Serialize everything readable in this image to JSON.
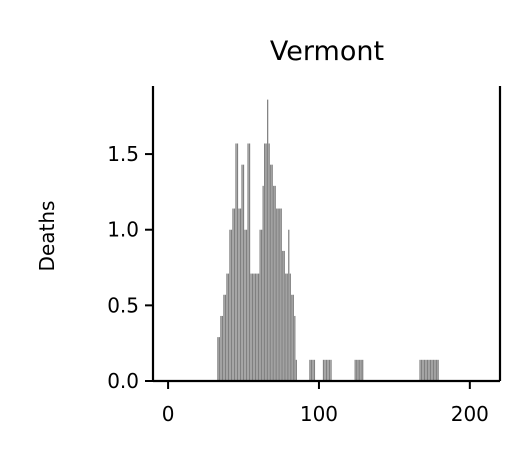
{
  "chart_data": {
    "type": "bar",
    "title": "Vermont",
    "xlabel": "",
    "ylabel": "Deaths",
    "xlim": [
      -10,
      220
    ],
    "ylim": [
      0,
      1.95
    ],
    "x_ticks": [
      0,
      100,
      200
    ],
    "y_ticks": [
      0.0,
      0.5,
      1.0,
      1.5
    ],
    "x_tick_labels": [
      "0",
      "100",
      "200"
    ],
    "y_tick_labels": [
      "0.0",
      "0.5",
      "1.0",
      "1.5"
    ],
    "bar_color": "#808080",
    "grid": false,
    "x": [
      33,
      34,
      35,
      36,
      37,
      38,
      39,
      40,
      41,
      42,
      43,
      44,
      45,
      46,
      47,
      48,
      49,
      50,
      51,
      52,
      53,
      54,
      55,
      56,
      57,
      58,
      59,
      60,
      61,
      62,
      63,
      64,
      65,
      66,
      67,
      68,
      69,
      70,
      71,
      72,
      73,
      74,
      75,
      76,
      77,
      78,
      79,
      80,
      81,
      82,
      83,
      84,
      85,
      94,
      95,
      96,
      97,
      103,
      104,
      105,
      106,
      107,
      108,
      124,
      125,
      126,
      127,
      128,
      129,
      167,
      168,
      169,
      170,
      171,
      172,
      173,
      174,
      175,
      176,
      177,
      178,
      179
    ],
    "values": [
      0.29,
      0.29,
      0.43,
      0.43,
      0.57,
      0.57,
      0.71,
      0.71,
      1.0,
      1.0,
      1.14,
      1.14,
      1.57,
      1.57,
      1.14,
      1.14,
      1.43,
      1.43,
      1.0,
      1.0,
      1.57,
      1.57,
      0.71,
      0.71,
      0.71,
      0.71,
      0.71,
      0.71,
      1.0,
      1.0,
      1.29,
      1.57,
      1.57,
      1.86,
      1.57,
      1.43,
      1.43,
      1.29,
      1.29,
      1.14,
      1.14,
      1.14,
      1.14,
      0.86,
      0.86,
      0.71,
      0.71,
      1.0,
      0.71,
      0.57,
      0.57,
      0.43,
      0.14,
      0.14,
      0.14,
      0.14,
      0.14,
      0.14,
      0.14,
      0.14,
      0.14,
      0.14,
      0.14,
      0.14,
      0.14,
      0.14,
      0.14,
      0.14,
      0.14,
      0.14,
      0.14,
      0.14,
      0.14,
      0.14,
      0.14,
      0.14,
      0.14,
      0.14,
      0.14,
      0.14,
      0.14,
      0.14
    ]
  }
}
